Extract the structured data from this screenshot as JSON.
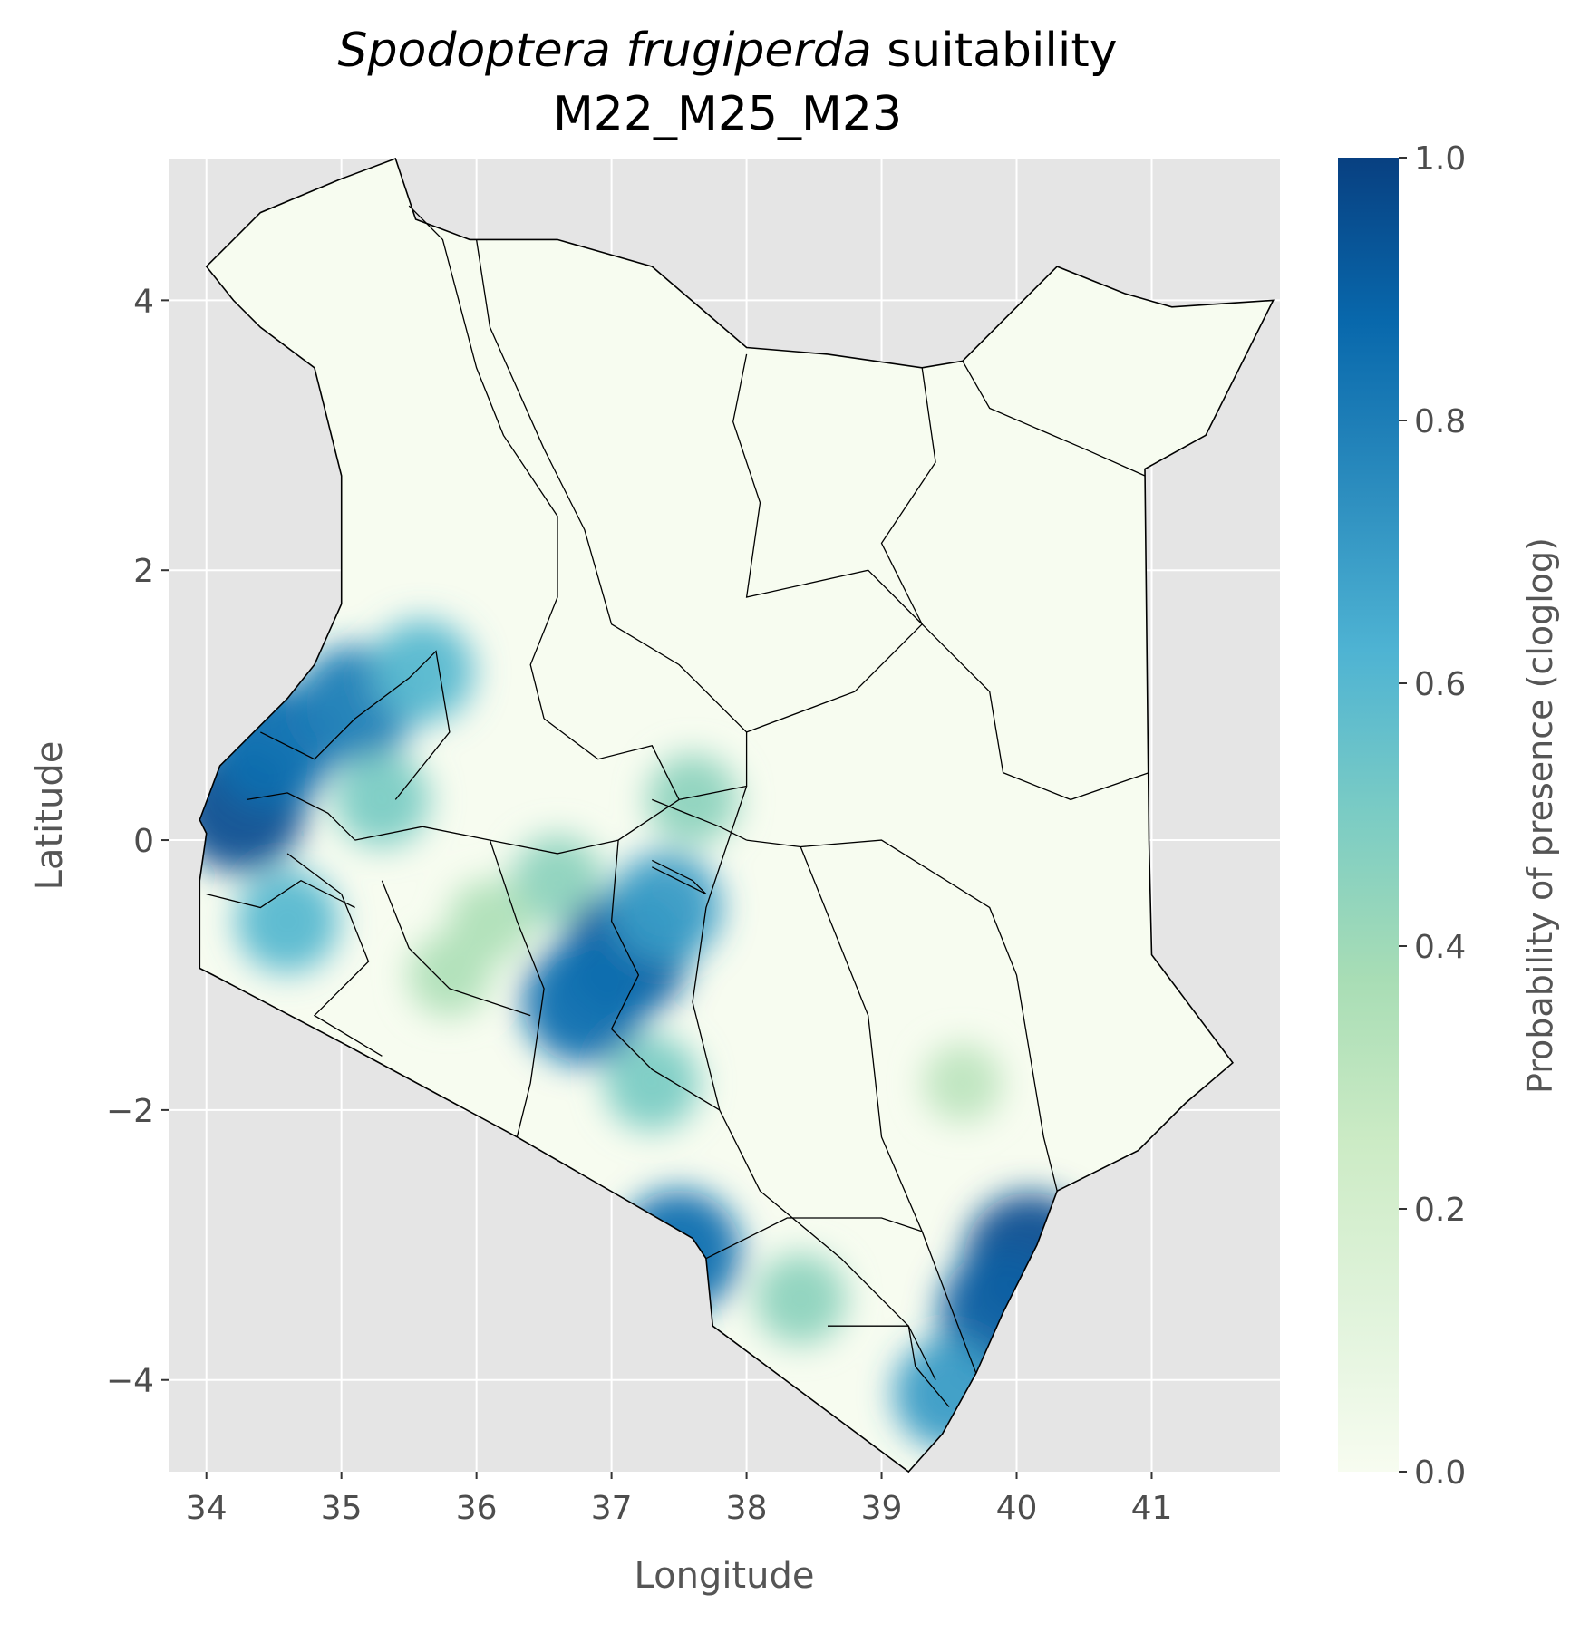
{
  "map": {
    "title_species": "Spodoptera frugiperda",
    "title_rest": " suitability",
    "subtitle": "M22_M25_M23",
    "xlabel": "Longitude",
    "ylabel": "Latitude",
    "x_ticks": [
      "34",
      "35",
      "36",
      "37",
      "38",
      "39",
      "40",
      "41"
    ],
    "y_ticks": [
      "4",
      "2",
      "0",
      "−2",
      "−4"
    ],
    "xlim": [
      33.72,
      41.95
    ],
    "ylim": [
      -4.68,
      5.05
    ],
    "colorbar": {
      "label": "Probability of presence (cloglog)",
      "ticks": [
        "1.0",
        "0.8",
        "0.6",
        "0.4",
        "0.2",
        "0.0"
      ],
      "range": [
        0.0,
        1.0
      ],
      "colormap": "GnBu",
      "colors": [
        "#f7fcf0",
        "#e0f3db",
        "#ccebc5",
        "#a8ddb5",
        "#7bccc4",
        "#4eb3d3",
        "#2b8cbe",
        "#0868ac",
        "#084081"
      ]
    },
    "panel_background": "#e5e5e5",
    "grid_color": "#ffffff",
    "boundary_color": "#000000",
    "hotspots": [
      {
        "lon": 34.25,
        "lat": 0.25,
        "prob": 0.95
      },
      {
        "lon": 34.5,
        "lat": 0.7,
        "prob": 0.85
      },
      {
        "lon": 35.1,
        "lat": 1.0,
        "prob": 0.8
      },
      {
        "lon": 35.6,
        "lat": 1.25,
        "prob": 0.6
      },
      {
        "lon": 35.3,
        "lat": 0.3,
        "prob": 0.5
      },
      {
        "lon": 34.6,
        "lat": -0.6,
        "prob": 0.6
      },
      {
        "lon": 36.6,
        "lat": -0.3,
        "prob": 0.45
      },
      {
        "lon": 37.1,
        "lat": -0.85,
        "prob": 0.9
      },
      {
        "lon": 36.8,
        "lat": -1.2,
        "prob": 0.85
      },
      {
        "lon": 37.4,
        "lat": -0.5,
        "prob": 0.7
      },
      {
        "lon": 37.6,
        "lat": 0.3,
        "prob": 0.45
      },
      {
        "lon": 37.3,
        "lat": -1.8,
        "prob": 0.5
      },
      {
        "lon": 35.8,
        "lat": -1.0,
        "prob": 0.35
      },
      {
        "lon": 37.5,
        "lat": -3.05,
        "prob": 0.85
      },
      {
        "lon": 40.1,
        "lat": -3.1,
        "prob": 0.95
      },
      {
        "lon": 39.9,
        "lat": -3.5,
        "prob": 0.9
      },
      {
        "lon": 39.5,
        "lat": -4.1,
        "prob": 0.7
      },
      {
        "lon": 38.4,
        "lat": -3.4,
        "prob": 0.45
      },
      {
        "lon": 39.6,
        "lat": -1.8,
        "prob": 0.3
      },
      {
        "lon": 36.1,
        "lat": -0.6,
        "prob": 0.35
      }
    ]
  }
}
